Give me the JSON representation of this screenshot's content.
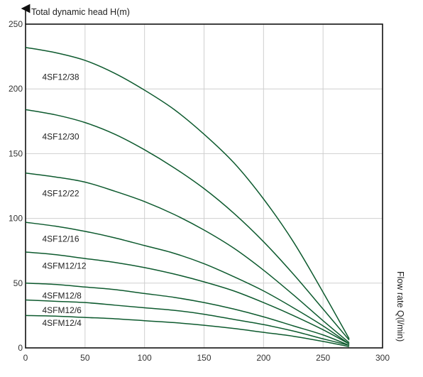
{
  "colors": {
    "curve": "#0d5a2e",
    "grid": "#cfcfcf",
    "axis": "#111111"
  },
  "chart_data": {
    "type": "line",
    "title": "",
    "ylabel": "Total dynamic head H(m)",
    "xlabel": "Flow rate Q(l/min)",
    "xlim": [
      0,
      300
    ],
    "ylim": [
      0,
      250
    ],
    "x_ticks": [
      0,
      50,
      100,
      150,
      200,
      250,
      300
    ],
    "y_ticks": [
      0,
      50,
      100,
      150,
      200,
      250
    ],
    "grid": true,
    "series": [
      {
        "name": "4SF12/38",
        "x": [
          0,
          25,
          50,
          75,
          100,
          125,
          150,
          175,
          200,
          225,
          250,
          272
        ],
        "y": [
          232,
          228,
          222,
          212,
          199,
          184,
          165,
          143,
          115,
          82,
          43,
          7
        ]
      },
      {
        "name": "4SF12/30",
        "x": [
          0,
          25,
          50,
          75,
          100,
          125,
          150,
          175,
          200,
          225,
          250,
          272
        ],
        "y": [
          184,
          180,
          174,
          165,
          153,
          139,
          123,
          104,
          82,
          57,
          30,
          6
        ]
      },
      {
        "name": "4SF12/22",
        "x": [
          0,
          25,
          50,
          75,
          100,
          125,
          150,
          175,
          200,
          225,
          250,
          272
        ],
        "y": [
          135,
          132,
          128,
          121,
          113,
          103,
          91,
          77,
          60,
          41,
          21,
          4
        ]
      },
      {
        "name": "4SF12/16",
        "x": [
          0,
          25,
          50,
          75,
          100,
          125,
          150,
          175,
          200,
          225,
          250,
          272
        ],
        "y": [
          97,
          94,
          90,
          85,
          79,
          73,
          65,
          55,
          44,
          31,
          17,
          3
        ]
      },
      {
        "name": "4SFM12/12",
        "x": [
          0,
          25,
          50,
          75,
          100,
          125,
          150,
          175,
          200,
          225,
          250,
          272
        ],
        "y": [
          74,
          72,
          69,
          66,
          62,
          57,
          51,
          44,
          35,
          25,
          14,
          3
        ]
      },
      {
        "name": "4SFM12/8",
        "x": [
          0,
          25,
          50,
          75,
          100,
          125,
          150,
          175,
          200,
          225,
          250,
          272
        ],
        "y": [
          50,
          49,
          47,
          45,
          42,
          39,
          35,
          30,
          24,
          17,
          10,
          2
        ]
      },
      {
        "name": "4SFM12/6",
        "x": [
          0,
          25,
          50,
          75,
          100,
          125,
          150,
          175,
          200,
          225,
          250,
          272
        ],
        "y": [
          37,
          36,
          35,
          33,
          31,
          29,
          26,
          22,
          18,
          13,
          7,
          2
        ]
      },
      {
        "name": "4SFM12/4",
        "x": [
          0,
          25,
          50,
          75,
          100,
          125,
          150,
          175,
          200,
          225,
          250,
          272
        ],
        "y": [
          25,
          24.5,
          23.5,
          22.5,
          21,
          19.5,
          17.5,
          15,
          12,
          9,
          5,
          1
        ]
      }
    ],
    "series_labels": [
      {
        "text": "4SF12/38",
        "x": 14,
        "y": 207
      },
      {
        "text": "4SF12/30",
        "x": 14,
        "y": 161
      },
      {
        "text": "4SF12/22",
        "x": 14,
        "y": 117
      },
      {
        "text": "4SF12/16",
        "x": 14,
        "y": 82
      },
      {
        "text": "4SFM12/12",
        "x": 14,
        "y": 61
      },
      {
        "text": "4SFM12/8",
        "x": 14,
        "y": 38
      },
      {
        "text": "4SFM12/6",
        "x": 14,
        "y": 27
      },
      {
        "text": "4SFM12/4",
        "x": 14,
        "y": 17
      }
    ]
  }
}
